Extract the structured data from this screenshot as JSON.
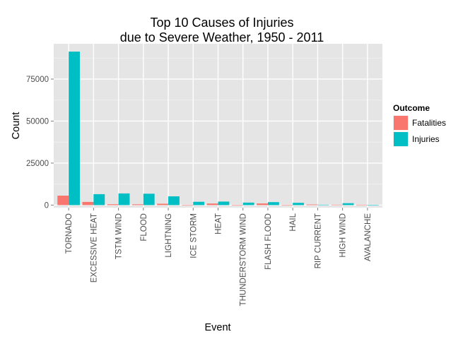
{
  "chart_data": {
    "type": "bar",
    "title_line1": "Top 10 Causes of Injuries",
    "title_line2": "due to Severe Weather, 1950 - 2011",
    "xlabel": "Event",
    "ylabel": "Count",
    "ylim": [
      -1500,
      96000
    ],
    "yticks": [
      0,
      25000,
      50000,
      75000
    ],
    "ytick_labels": [
      "0",
      "25000",
      "50000",
      "75000"
    ],
    "grid": true,
    "legend_position": "right",
    "legend_title": "Outcome",
    "categories": [
      "TORNADO",
      "EXCESSIVE HEAT",
      "TSTM WIND",
      "FLOOD",
      "LIGHTNING",
      "ICE STORM",
      "HEAT",
      "THUNDERSTORM WIND",
      "FLASH FLOOD",
      "HAIL",
      "RIP CURRENT",
      "HIGH WIND",
      "AVALANCHE"
    ],
    "series": [
      {
        "name": "Fatalities",
        "color": "#F8766D",
        "values": [
          5633,
          1903,
          504,
          470,
          816,
          89,
          937,
          133,
          978,
          15,
          368,
          248,
          224
        ]
      },
      {
        "name": "Injuries",
        "color": "#00BFC4",
        "values": [
          91346,
          6525,
          6957,
          6789,
          5230,
          1975,
          2100,
          1488,
          1777,
          1361,
          232,
          1137,
          170
        ]
      }
    ]
  }
}
